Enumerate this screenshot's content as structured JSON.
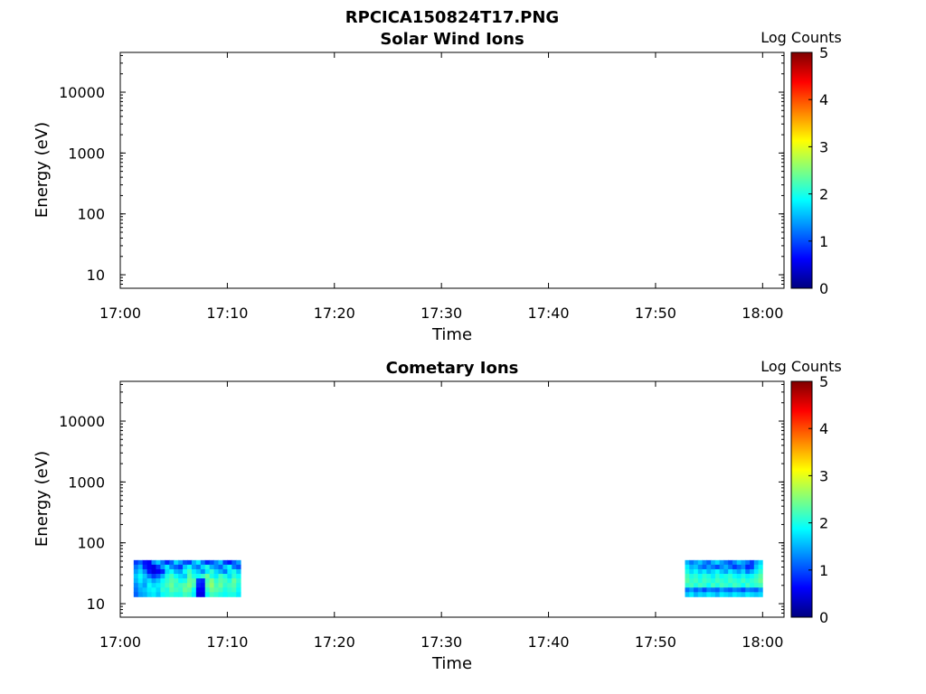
{
  "figure": {
    "title": "RPCICA150824T17.PNG"
  },
  "colormap": {
    "name": "jet",
    "stops": [
      "#00007f",
      "#0000ff",
      "#007fff",
      "#00ffff",
      "#7fff7f",
      "#ffff00",
      "#ff7f00",
      "#ff0000",
      "#7f0000"
    ]
  },
  "chart_data": [
    {
      "type": "heatmap",
      "title": "Solar Wind Ions",
      "xlabel": "Time",
      "ylabel": "Energy (eV)",
      "y_scale": "log",
      "xlim": [
        "17:00",
        "18:02"
      ],
      "ylim": [
        6,
        45000
      ],
      "x_ticks": [
        "17:00",
        "17:10",
        "17:20",
        "17:30",
        "17:40",
        "17:50",
        "18:00"
      ],
      "y_ticks": [
        10,
        100,
        1000,
        10000
      ],
      "y_tick_labels": [
        "10",
        "100",
        "1000",
        "10000"
      ],
      "colorbar": {
        "label": "Log Counts",
        "range": [
          0,
          5
        ],
        "ticks": [
          "0",
          "1",
          "2",
          "3",
          "4",
          "5"
        ]
      },
      "data_blocks": []
    },
    {
      "type": "heatmap",
      "title": "Cometary Ions",
      "xlabel": "Time",
      "ylabel": "Energy (eV)",
      "y_scale": "log",
      "xlim": [
        "17:00",
        "18:02"
      ],
      "ylim": [
        6,
        45000
      ],
      "x_ticks": [
        "17:00",
        "17:10",
        "17:20",
        "17:30",
        "17:40",
        "17:50",
        "18:00"
      ],
      "y_ticks": [
        10,
        100,
        1000,
        10000
      ],
      "y_tick_labels": [
        "10",
        "100",
        "1000",
        "10000"
      ],
      "colorbar": {
        "label": "Log Counts",
        "range": [
          0,
          5
        ],
        "ticks": [
          "0",
          "1",
          "2",
          "3",
          "4",
          "5"
        ]
      },
      "data_blocks": [
        {
          "time_start": "17:01:15",
          "time_end": "17:11:15",
          "energy_min": 13,
          "energy_max": 52,
          "log_counts": [
            [
              0.9,
              1.1,
              0.7,
              0.6,
              1.3,
              1.6,
              1.2,
              0.8,
              1.1,
              1.7,
              1.4,
              1.0,
              0.9,
              1.5,
              1.8,
              1.2,
              0.8,
              1.0,
              1.3,
              1.6,
              0.9,
              0.7,
              1.1,
              1.4
            ],
            [
              1.2,
              1.5,
              0.8,
              0.6,
              0.5,
              0.9,
              1.4,
              1.8,
              1.3,
              1.1,
              0.9,
              1.6,
              1.9,
              1.4,
              1.2,
              1.7,
              2.0,
              1.5,
              1.3,
              1.1,
              1.6,
              1.9,
              1.2,
              1.0
            ],
            [
              1.4,
              1.7,
              1.3,
              0.7,
              0.5,
              0.6,
              0.8,
              1.7,
              1.9,
              1.5,
              1.4,
              1.9,
              2.2,
              1.8,
              1.6,
              1.3,
              1.8,
              2.1,
              1.7,
              1.5,
              1.2,
              1.8,
              2.0,
              1.6
            ],
            [
              1.6,
              1.9,
              1.6,
              1.2,
              0.9,
              1.1,
              1.5,
              2.0,
              2.2,
              1.9,
              1.7,
              1.6,
              2.3,
              2.0,
              1.9,
              2.1,
              2.4,
              2.0,
              1.8,
              2.2,
              2.0,
              1.7,
              2.1,
              1.9
            ],
            [
              1.5,
              1.8,
              1.5,
              1.7,
              1.4,
              1.6,
              1.9,
              2.1,
              2.3,
              2.2,
              1.9,
              2.0,
              2.4,
              2.3,
              0.9,
              0.8,
              2.2,
              2.5,
              2.1,
              2.3,
              2.2,
              2.0,
              2.4,
              2.1
            ],
            [
              1.3,
              1.6,
              1.4,
              1.9,
              1.7,
              1.8,
              2.0,
              2.2,
              2.4,
              2.1,
              2.2,
              2.3,
              2.5,
              2.2,
              0.8,
              0.7,
              2.3,
              2.6,
              2.2,
              2.4,
              2.1,
              2.2,
              2.3,
              2.0
            ],
            [
              1.2,
              1.5,
              1.6,
              1.8,
              1.9,
              1.7,
              2.1,
              2.0,
              2.3,
              2.2,
              2.1,
              2.4,
              2.3,
              1.9,
              0.6,
              0.6,
              2.1,
              2.4,
              2.3,
              2.2,
              2.0,
              2.1,
              2.2,
              1.9
            ],
            [
              1.1,
              1.4,
              1.5,
              1.7,
              1.8,
              1.6,
              1.9,
              2.0,
              2.1,
              2.0,
              2.0,
              2.2,
              2.1,
              1.8,
              0.5,
              0.5,
              1.9,
              2.2,
              2.1,
              2.0,
              1.9,
              2.0,
              2.0,
              1.8
            ]
          ]
        },
        {
          "time_start": "17:52:45",
          "time_end": "18:00:00",
          "energy_min": 13,
          "energy_max": 52,
          "log_counts": [
            [
              1.5,
              1.2,
              1.4,
              1.6,
              1.3,
              1.1,
              1.5,
              1.7,
              1.4,
              1.2,
              1.0,
              1.3,
              1.6,
              1.4,
              1.2,
              0.9,
              1.4,
              1.7
            ],
            [
              1.8,
              1.5,
              1.6,
              1.3,
              1.1,
              1.4,
              1.2,
              1.0,
              1.3,
              1.5,
              1.2,
              0.9,
              1.1,
              1.3,
              0.8,
              0.9,
              1.6,
              1.9
            ],
            [
              2.0,
              1.7,
              1.9,
              1.6,
              1.8,
              1.5,
              1.7,
              1.9,
              1.6,
              1.4,
              1.8,
              1.6,
              1.4,
              1.7,
              1.2,
              1.5,
              1.8,
              2.1
            ],
            [
              2.2,
              2.0,
              2.1,
              1.9,
              2.1,
              2.0,
              1.8,
              2.1,
              1.9,
              2.0,
              2.1,
              1.9,
              1.8,
              2.0,
              1.8,
              1.9,
              2.1,
              2.3
            ],
            [
              2.3,
              2.1,
              2.2,
              2.0,
              2.2,
              2.1,
              2.0,
              2.2,
              2.1,
              2.0,
              2.2,
              2.1,
              2.0,
              2.2,
              2.0,
              2.1,
              2.2,
              2.4
            ],
            [
              2.1,
              2.2,
              2.0,
              2.2,
              2.1,
              1.9,
              2.2,
              2.0,
              2.2,
              2.1,
              2.0,
              2.2,
              2.1,
              1.9,
              2.2,
              2.0,
              2.1,
              2.2
            ],
            [
              1.2,
              1.4,
              1.1,
              1.3,
              1.0,
              1.3,
              1.2,
              1.1,
              1.4,
              1.2,
              1.1,
              1.3,
              1.2,
              1.0,
              1.3,
              1.2,
              1.1,
              1.4
            ],
            [
              1.6,
              1.8,
              1.5,
              1.7,
              1.6,
              1.8,
              1.7,
              1.5,
              1.8,
              1.7,
              1.6,
              1.8,
              1.7,
              1.6,
              1.8,
              1.7,
              1.6,
              1.7
            ]
          ]
        }
      ]
    }
  ]
}
